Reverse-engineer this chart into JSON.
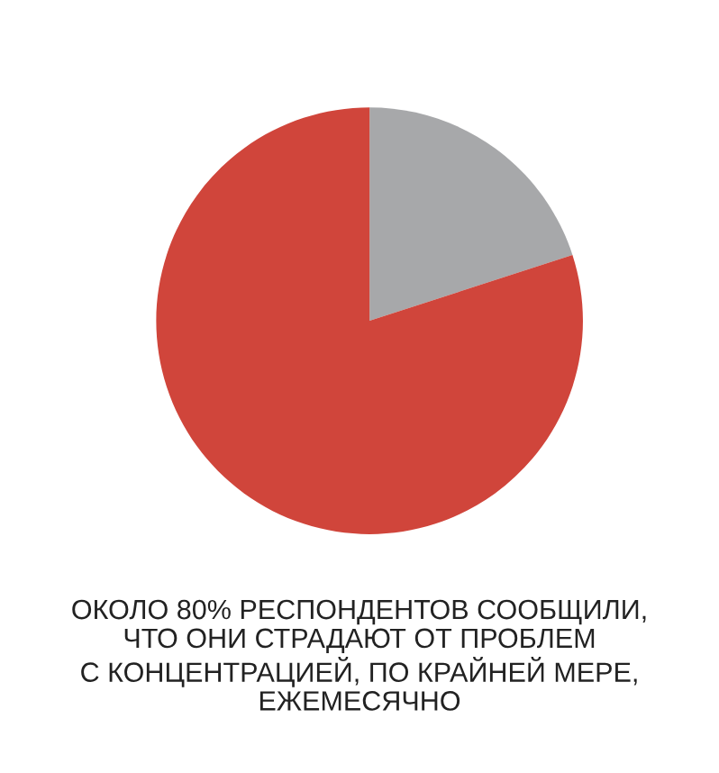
{
  "chart_data": {
    "type": "pie",
    "categories": [
      null,
      null
    ],
    "values": [
      20,
      80
    ],
    "colors": [
      "#a7a8aa",
      "#d0453b"
    ],
    "annotations": [
      "ОКОЛО 80% РЕСПОНДЕНТОВ СООБЩИЛИ,\nЧТО ОНИ СТРАДАЮТ ОТ ПРОБЛЕМ\nС КОНЦЕНТРАЦИЕЙ, ПО КРАЙНЕЙ МЕРЕ,\nЕЖЕМЕСЯЧНО"
    ]
  }
}
